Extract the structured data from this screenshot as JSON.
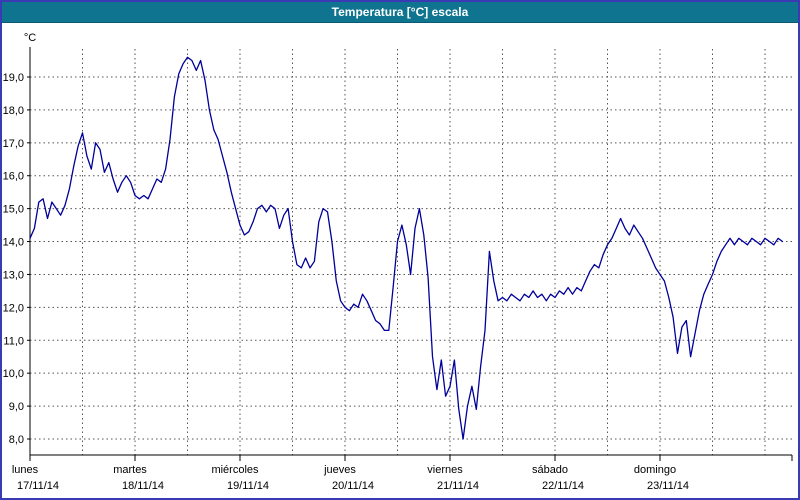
{
  "window": {
    "title": "Temperatura [°C] escala"
  },
  "colors": {
    "titlebar": "#0e7490",
    "frame_border": "#3a3ab4",
    "line": "#00009a",
    "grid": "#555555"
  },
  "chart_data": {
    "type": "line",
    "title": "Temperatura [°C] escala",
    "y_unit_label": "°C",
    "ylabel": "Temperatura [°C]",
    "xlabel": "",
    "ylim": [
      8.0,
      19.0
    ],
    "y_tick_step": 1.0,
    "y_ticks": [
      {
        "value": 19.0,
        "label": "19,0"
      },
      {
        "value": 18.0,
        "label": "18,0"
      },
      {
        "value": 17.0,
        "label": "17,0"
      },
      {
        "value": 16.0,
        "label": "16,0"
      },
      {
        "value": 15.0,
        "label": "15,0"
      },
      {
        "value": 14.0,
        "label": "14,0"
      },
      {
        "value": 13.0,
        "label": "13,0"
      },
      {
        "value": 12.0,
        "label": "12,0"
      },
      {
        "value": 11.0,
        "label": "11,0"
      },
      {
        "value": 10.0,
        "label": "10,0"
      },
      {
        "value": 9.0,
        "label": "9,0"
      },
      {
        "value": 8.0,
        "label": "8,0"
      }
    ],
    "x_days": [
      {
        "name": "lunes",
        "date": "17/11/14",
        "start_hour": 0
      },
      {
        "name": "martes",
        "date": "18/11/14",
        "start_hour": 24
      },
      {
        "name": "miércoles",
        "date": "19/11/14",
        "start_hour": 48
      },
      {
        "name": "jueves",
        "date": "20/11/14",
        "start_hour": 72
      },
      {
        "name": "viernes",
        "date": "21/11/14",
        "start_hour": 96
      },
      {
        "name": "sábado",
        "date": "22/11/14",
        "start_hour": 120
      },
      {
        "name": "domingo",
        "date": "23/11/14",
        "start_hour": 144
      }
    ],
    "x_range_hours": [
      0,
      172
    ],
    "grid": true,
    "legend": "none",
    "series": [
      {
        "name": "Temperatura",
        "points": [
          [
            0,
            14.1
          ],
          [
            1,
            14.4
          ],
          [
            2,
            15.2
          ],
          [
            3,
            15.3
          ],
          [
            4,
            14.7
          ],
          [
            5,
            15.2
          ],
          [
            6,
            15.0
          ],
          [
            7,
            14.8
          ],
          [
            8,
            15.1
          ],
          [
            9,
            15.6
          ],
          [
            10,
            16.3
          ],
          [
            11,
            16.9
          ],
          [
            12,
            17.3
          ],
          [
            13,
            16.6
          ],
          [
            14,
            16.2
          ],
          [
            15,
            17.0
          ],
          [
            16,
            16.8
          ],
          [
            17,
            16.1
          ],
          [
            18,
            16.4
          ],
          [
            19,
            15.9
          ],
          [
            20,
            15.5
          ],
          [
            21,
            15.8
          ],
          [
            22,
            16.0
          ],
          [
            23,
            15.8
          ],
          [
            24,
            15.4
          ],
          [
            25,
            15.3
          ],
          [
            26,
            15.4
          ],
          [
            27,
            15.3
          ],
          [
            28,
            15.6
          ],
          [
            29,
            15.9
          ],
          [
            30,
            15.8
          ],
          [
            31,
            16.2
          ],
          [
            32,
            17.1
          ],
          [
            33,
            18.4
          ],
          [
            34,
            19.1
          ],
          [
            35,
            19.4
          ],
          [
            36,
            19.6
          ],
          [
            37,
            19.5
          ],
          [
            38,
            19.2
          ],
          [
            39,
            19.5
          ],
          [
            40,
            18.9
          ],
          [
            41,
            18.0
          ],
          [
            42,
            17.4
          ],
          [
            43,
            17.1
          ],
          [
            44,
            16.6
          ],
          [
            45,
            16.1
          ],
          [
            46,
            15.5
          ],
          [
            47,
            15.0
          ],
          [
            48,
            14.5
          ],
          [
            49,
            14.2
          ],
          [
            50,
            14.3
          ],
          [
            51,
            14.6
          ],
          [
            52,
            15.0
          ],
          [
            53,
            15.1
          ],
          [
            54,
            14.9
          ],
          [
            55,
            15.1
          ],
          [
            56,
            15.0
          ],
          [
            57,
            14.4
          ],
          [
            58,
            14.8
          ],
          [
            59,
            15.0
          ],
          [
            60,
            14.0
          ],
          [
            61,
            13.3
          ],
          [
            62,
            13.2
          ],
          [
            63,
            13.5
          ],
          [
            64,
            13.2
          ],
          [
            65,
            13.4
          ],
          [
            66,
            14.6
          ],
          [
            67,
            15.0
          ],
          [
            68,
            14.9
          ],
          [
            69,
            14.0
          ],
          [
            70,
            12.8
          ],
          [
            71,
            12.2
          ],
          [
            72,
            12.0
          ],
          [
            73,
            11.9
          ],
          [
            74,
            12.1
          ],
          [
            75,
            12.0
          ],
          [
            76,
            12.4
          ],
          [
            77,
            12.2
          ],
          [
            78,
            11.9
          ],
          [
            79,
            11.6
          ],
          [
            80,
            11.5
          ],
          [
            81,
            11.3
          ],
          [
            82,
            11.3
          ],
          [
            83,
            12.6
          ],
          [
            84,
            14.0
          ],
          [
            85,
            14.5
          ],
          [
            86,
            13.9
          ],
          [
            87,
            13.0
          ],
          [
            88,
            14.4
          ],
          [
            89,
            15.0
          ],
          [
            90,
            14.2
          ],
          [
            91,
            12.9
          ],
          [
            92,
            10.5
          ],
          [
            93,
            9.5
          ],
          [
            94,
            10.4
          ],
          [
            95,
            9.3
          ],
          [
            96,
            9.6
          ],
          [
            97,
            10.4
          ],
          [
            98,
            8.9
          ],
          [
            99,
            8.0
          ],
          [
            100,
            9.0
          ],
          [
            101,
            9.6
          ],
          [
            102,
            8.9
          ],
          [
            103,
            10.2
          ],
          [
            104,
            11.3
          ],
          [
            105,
            13.7
          ],
          [
            106,
            12.8
          ],
          [
            107,
            12.2
          ],
          [
            108,
            12.3
          ],
          [
            109,
            12.2
          ],
          [
            110,
            12.4
          ],
          [
            111,
            12.3
          ],
          [
            112,
            12.2
          ],
          [
            113,
            12.4
          ],
          [
            114,
            12.3
          ],
          [
            115,
            12.5
          ],
          [
            116,
            12.3
          ],
          [
            117,
            12.4
          ],
          [
            118,
            12.2
          ],
          [
            119,
            12.4
          ],
          [
            120,
            12.3
          ],
          [
            121,
            12.5
          ],
          [
            122,
            12.4
          ],
          [
            123,
            12.6
          ],
          [
            124,
            12.4
          ],
          [
            125,
            12.6
          ],
          [
            126,
            12.5
          ],
          [
            127,
            12.8
          ],
          [
            128,
            13.1
          ],
          [
            129,
            13.3
          ],
          [
            130,
            13.2
          ],
          [
            131,
            13.6
          ],
          [
            132,
            13.9
          ],
          [
            133,
            14.1
          ],
          [
            134,
            14.4
          ],
          [
            135,
            14.7
          ],
          [
            136,
            14.4
          ],
          [
            137,
            14.2
          ],
          [
            138,
            14.5
          ],
          [
            139,
            14.3
          ],
          [
            140,
            14.1
          ],
          [
            141,
            13.8
          ],
          [
            142,
            13.5
          ],
          [
            143,
            13.2
          ],
          [
            144,
            13.0
          ],
          [
            145,
            12.8
          ],
          [
            146,
            12.3
          ],
          [
            147,
            11.7
          ],
          [
            148,
            10.6
          ],
          [
            149,
            11.4
          ],
          [
            150,
            11.6
          ],
          [
            151,
            10.5
          ],
          [
            152,
            11.2
          ],
          [
            153,
            11.9
          ],
          [
            154,
            12.4
          ],
          [
            155,
            12.7
          ],
          [
            156,
            13.0
          ],
          [
            157,
            13.4
          ],
          [
            158,
            13.7
          ],
          [
            159,
            13.9
          ],
          [
            160,
            14.1
          ],
          [
            161,
            13.9
          ],
          [
            162,
            14.1
          ],
          [
            163,
            14.0
          ],
          [
            164,
            13.9
          ],
          [
            165,
            14.1
          ],
          [
            166,
            14.0
          ],
          [
            167,
            13.9
          ],
          [
            168,
            14.1
          ],
          [
            169,
            14.0
          ],
          [
            170,
            13.9
          ],
          [
            171,
            14.1
          ],
          [
            172,
            14.0
          ]
        ]
      }
    ]
  }
}
